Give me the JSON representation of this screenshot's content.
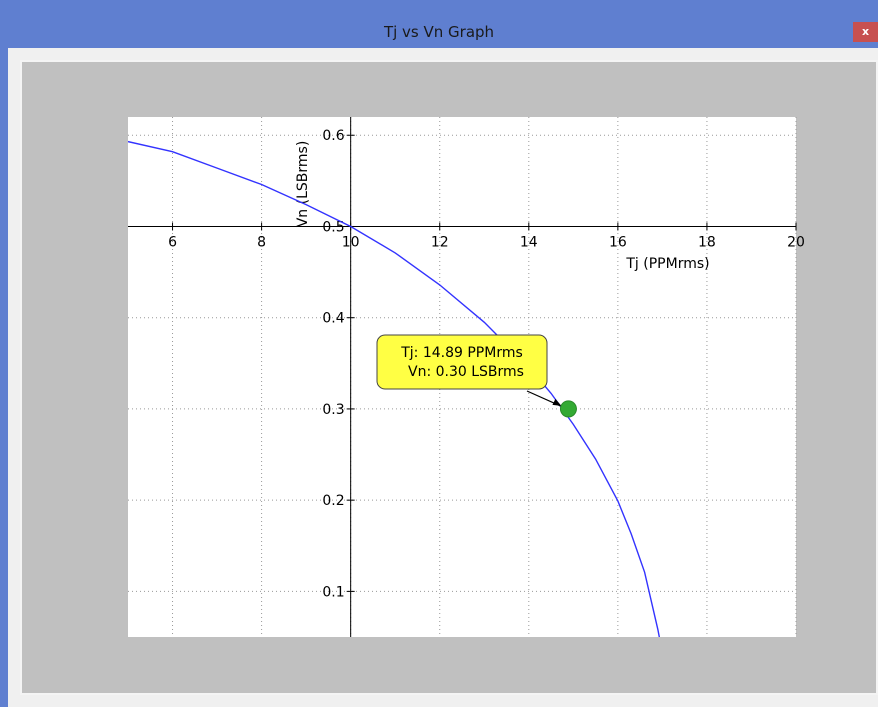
{
  "window": {
    "title": "Tj vs Vn Graph",
    "close_label": "x",
    "colors": {
      "titlebar": "#5f7fd0",
      "close": "#c75050",
      "canvas_bg": "#c0c0c0",
      "plot_bg": "#ffffff"
    }
  },
  "chart_data": {
    "type": "line",
    "xlabel": "Tj (PPMrms)",
    "ylabel": "Vn (LSBrms)",
    "xlim": [
      5,
      20
    ],
    "ylim": [
      0.05,
      0.62
    ],
    "xticks": [
      6,
      8,
      10,
      12,
      14,
      16,
      18,
      20
    ],
    "yticks": [
      0.1,
      0.2,
      0.3,
      0.4,
      0.5,
      0.6
    ],
    "xtick_labels": [
      "6",
      "8",
      "10",
      "12",
      "14",
      "16",
      "18",
      "20"
    ],
    "ytick_labels": [
      "0.1",
      "0.2",
      "0.3",
      "0.4",
      "0.5",
      "0.6"
    ],
    "grid": true,
    "series": [
      {
        "color": "#3333ff",
        "x": [
          5,
          6,
          7,
          8,
          9,
          10,
          11,
          12,
          13,
          14,
          14.5,
          15,
          15.5,
          16,
          16.3,
          16.6,
          16.9,
          16.95
        ],
        "y": [
          0.593,
          0.582,
          0.564,
          0.546,
          0.524,
          0.5,
          0.471,
          0.436,
          0.395,
          0.346,
          0.317,
          0.283,
          0.245,
          0.199,
          0.163,
          0.121,
          0.058,
          0.045
        ]
      }
    ],
    "marker": {
      "x": 14.89,
      "y": 0.3,
      "color": "#33aa33"
    },
    "annotation": {
      "line1": "Tj: 14.89 PPMrms",
      "line2": "Vn: 0.30 LSBrms",
      "bg": "#ffff44"
    }
  }
}
